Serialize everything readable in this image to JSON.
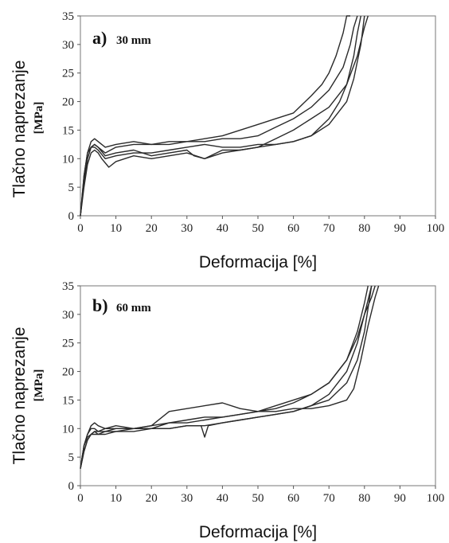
{
  "chart_data": [
    {
      "type": "line",
      "panel": "a)",
      "panel_label": "30 mm",
      "xlabel": "Deformacija [%]",
      "ylabel": "Tlačno naprezanje",
      "ylabel_unit": "[MPa]",
      "xlim": [
        0,
        100
      ],
      "ylim": [
        0,
        35
      ],
      "xticks": [
        0,
        10,
        20,
        30,
        40,
        50,
        60,
        70,
        80,
        90,
        100
      ],
      "yticks": [
        0,
        5,
        10,
        15,
        20,
        25,
        30,
        35
      ],
      "grid": false,
      "series": [
        {
          "x": [
            0,
            1,
            2,
            3,
            4,
            5,
            7,
            10,
            15,
            20,
            25,
            30,
            35,
            40,
            45,
            50,
            55,
            60,
            65,
            68,
            70,
            72,
            74,
            75,
            76
          ],
          "y": [
            0,
            6,
            10,
            12,
            12.5,
            12,
            11,
            12,
            12.5,
            12.5,
            13,
            13,
            13.5,
            14,
            15,
            16,
            17,
            18,
            21,
            23,
            25,
            28,
            32,
            35,
            35
          ]
        },
        {
          "x": [
            0,
            1,
            2,
            3,
            4,
            5,
            7,
            10,
            15,
            20,
            25,
            30,
            35,
            40,
            45,
            50,
            55,
            60,
            65,
            70,
            72,
            74,
            76,
            77,
            78
          ],
          "y": [
            0,
            7,
            11,
            13,
            13.5,
            13,
            12,
            12.5,
            13,
            12.5,
            12.5,
            13,
            13,
            13.5,
            13.5,
            14,
            15.5,
            17,
            19,
            22,
            24,
            26,
            30,
            33,
            35
          ]
        },
        {
          "x": [
            0,
            1,
            2,
            3,
            4,
            5,
            6,
            8,
            10,
            15,
            20,
            25,
            30,
            35,
            40,
            45,
            50,
            55,
            60,
            65,
            70,
            75,
            78,
            80,
            81
          ],
          "y": [
            0,
            5,
            9,
            11,
            11.5,
            11,
            10,
            8.5,
            9.5,
            10.5,
            10,
            10.5,
            11,
            10,
            11,
            11.5,
            12,
            13.5,
            15,
            17,
            19,
            23,
            28,
            33,
            35
          ]
        },
        {
          "x": [
            0,
            1,
            2,
            3,
            4,
            5,
            7,
            10,
            15,
            20,
            25,
            30,
            32,
            35,
            40,
            45,
            50,
            55,
            60,
            65,
            70,
            73,
            75,
            77,
            78,
            79
          ],
          "y": [
            0,
            6,
            10,
            12,
            12.5,
            12,
            10.5,
            11,
            11.5,
            10.5,
            11,
            11.5,
            10.5,
            10,
            11.5,
            11.5,
            12,
            12.5,
            13,
            14,
            17,
            20,
            23,
            28,
            32,
            35
          ]
        },
        {
          "x": [
            0,
            1,
            2,
            3,
            4,
            5,
            7,
            10,
            15,
            20,
            25,
            30,
            35,
            40,
            45,
            50,
            55,
            60,
            65,
            70,
            75,
            77,
            79,
            80
          ],
          "y": [
            0,
            7,
            11,
            12,
            12,
            11.5,
            10,
            10.5,
            11,
            11,
            11.5,
            12,
            12.5,
            12,
            12,
            12.5,
            12.5,
            13,
            14,
            16,
            20,
            24,
            30,
            35
          ]
        }
      ]
    },
    {
      "type": "line",
      "panel": "b)",
      "panel_label": "60 mm",
      "xlabel": "Deformacija [%]",
      "ylabel": "Tlačno naprezanje",
      "ylabel_unit": "[MPa]",
      "xlim": [
        0,
        100
      ],
      "ylim": [
        0,
        35
      ],
      "xticks": [
        0,
        10,
        20,
        30,
        40,
        50,
        60,
        70,
        80,
        90,
        100
      ],
      "yticks": [
        0,
        5,
        10,
        15,
        20,
        25,
        30,
        35
      ],
      "grid": false,
      "series": [
        {
          "x": [
            0,
            1,
            2,
            3,
            4,
            5,
            7,
            10,
            15,
            20,
            25,
            30,
            35,
            40,
            45,
            50,
            55,
            60,
            65,
            70,
            75,
            78,
            80,
            81
          ],
          "y": [
            3,
            7,
            9,
            10.5,
            11,
            10.5,
            10,
            10.5,
            10,
            10.5,
            11,
            11,
            11.5,
            12,
            12.5,
            13,
            13.5,
            14.5,
            16,
            18,
            22,
            27,
            32,
            35
          ]
        },
        {
          "x": [
            0,
            1,
            2,
            3,
            4,
            5,
            7,
            10,
            15,
            20,
            25,
            30,
            35,
            40,
            45,
            50,
            55,
            60,
            65,
            70,
            75,
            78,
            80,
            82
          ],
          "y": [
            3,
            6,
            8,
            9,
            9.5,
            9,
            9,
            9.5,
            9.5,
            10,
            10,
            10.5,
            10.5,
            11,
            11.5,
            12,
            12.5,
            13,
            14,
            16,
            20,
            25,
            30,
            35
          ]
        },
        {
          "x": [
            0,
            1,
            2,
            3,
            4,
            5,
            7,
            10,
            15,
            20,
            25,
            30,
            35,
            40,
            45,
            50,
            55,
            60,
            65,
            70,
            75,
            78,
            80,
            82,
            83
          ],
          "y": [
            3,
            7,
            9,
            10,
            10,
            9.5,
            9.5,
            10,
            10,
            10,
            11,
            11.5,
            12,
            12,
            12.5,
            13,
            14,
            15,
            16,
            18,
            22,
            26,
            30,
            33,
            35
          ]
        },
        {
          "x": [
            0,
            1,
            2,
            3,
            4,
            5,
            7,
            10,
            15,
            20,
            25,
            30,
            35,
            40,
            45,
            50,
            55,
            60,
            65,
            70,
            75,
            77,
            79,
            81,
            83,
            84
          ],
          "y": [
            3,
            7,
            8.5,
            9,
            9.5,
            9.5,
            10,
            10,
            10,
            10.5,
            13,
            13.5,
            14,
            14.5,
            13.5,
            13,
            13,
            13.5,
            13.5,
            14,
            15,
            17,
            22,
            28,
            33,
            35
          ]
        },
        {
          "x": [
            0,
            1,
            2,
            3,
            4,
            5,
            7,
            10,
            15,
            20,
            25,
            30,
            34,
            35,
            36,
            40,
            45,
            50,
            55,
            60,
            65,
            70,
            75,
            78,
            80,
            82
          ],
          "y": [
            3,
            6,
            8,
            9,
            9,
            9,
            9.5,
            9.5,
            10,
            10,
            10,
            10.5,
            10.5,
            8.5,
            10.5,
            11,
            11.5,
            12,
            12.5,
            13,
            14,
            15,
            18,
            22,
            27,
            35
          ]
        }
      ]
    }
  ]
}
